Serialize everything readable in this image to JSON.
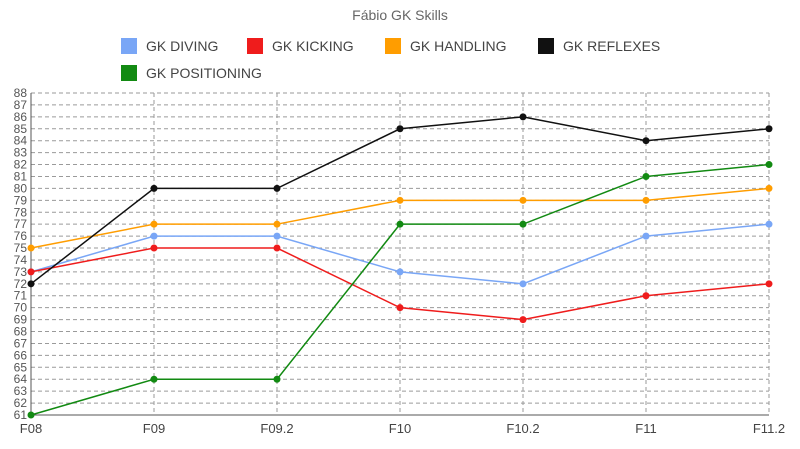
{
  "chart_data": {
    "type": "line",
    "title": "Fábio GK Skills",
    "xlabel": "",
    "ylabel": "",
    "categories": [
      "F08",
      "F09",
      "F09.2",
      "F10",
      "F10.2",
      "F11",
      "F11.2"
    ],
    "ylim": [
      61,
      88
    ],
    "yticks": [
      61,
      62,
      63,
      64,
      65,
      66,
      67,
      68,
      69,
      70,
      71,
      72,
      73,
      74,
      75,
      76,
      77,
      78,
      79,
      80,
      81,
      82,
      83,
      84,
      85,
      86,
      87,
      88
    ],
    "legend_position": "top",
    "series": [
      {
        "name": "GK DIVING",
        "color": "#79a6f6",
        "values": [
          73,
          76,
          76,
          73,
          72,
          76,
          77
        ]
      },
      {
        "name": "GK KICKING",
        "color": "#ef1c1c",
        "values": [
          73,
          75,
          75,
          70,
          69,
          71,
          72
        ]
      },
      {
        "name": "GK HANDLING",
        "color": "#ff9d00",
        "values": [
          75,
          77,
          77,
          79,
          79,
          79,
          80
        ]
      },
      {
        "name": "GK REFLEXES",
        "color": "#111111",
        "values": [
          72,
          80,
          80,
          85,
          86,
          84,
          85
        ]
      },
      {
        "name": "GK POSITIONING",
        "color": "#128a12",
        "values": [
          61,
          64,
          64,
          77,
          77,
          81,
          82
        ]
      }
    ]
  }
}
